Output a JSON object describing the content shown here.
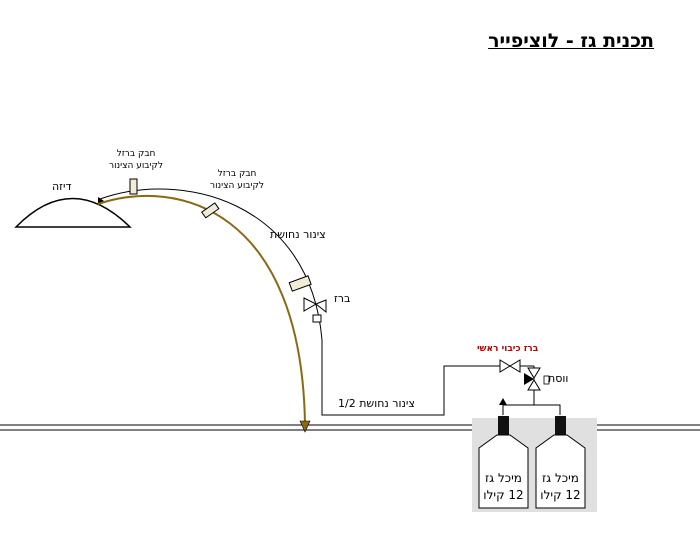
{
  "title": "תכנית גז - לוציפייר",
  "labels": {
    "burner": "דיזה",
    "clamp_1_line1": "חבק ברזל",
    "clamp_1_line2": "לקיבוע הצינור",
    "clamp_2_line1": "חבק ברזל",
    "clamp_2_line2": "לקיבוע הצינור",
    "copper_pipe": "צינור נחושת",
    "valve": "ברז",
    "copper_pipe_half": "צינור נחושת 1/2",
    "main_shutoff": "ברז כיבוי ראשי",
    "regulator": "ווסת"
  },
  "cylinders": [
    {
      "line1": "מיכל גז",
      "line2": "12 קילו"
    },
    {
      "line1": "מיכל גז",
      "line2": "12 קילו"
    }
  ],
  "colors": {
    "pipe_brown": "#8B6914",
    "line": "#000000",
    "cylinder_fill": "#ffffff",
    "cylinder_bg": "#e0e0e0",
    "main_shutoff_red": "#c00000",
    "clamp_fill": "#f0ecd8"
  }
}
